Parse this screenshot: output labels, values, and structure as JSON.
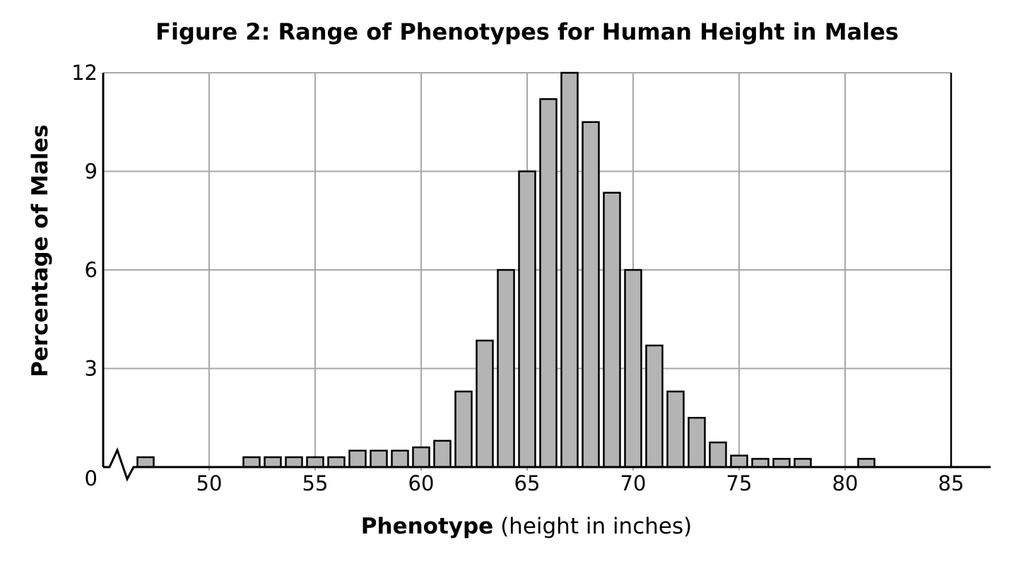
{
  "figure": {
    "title": "Figure 2: Range of Phenotypes for Human Height in Males",
    "y_axis_label": "Percentage of Males",
    "x_axis_label_bold": "Phenotype",
    "x_axis_label_regular": " (height in inches)"
  },
  "chart_data": {
    "type": "bar",
    "title": "Figure 2: Range of Phenotypes for Human Height in Males",
    "xlabel": "Phenotype (height in inches)",
    "ylabel": "Percentage of Males",
    "x": [
      47,
      52,
      53,
      54,
      55,
      56,
      57,
      58,
      59,
      60,
      61,
      62,
      63,
      64,
      65,
      66,
      67,
      68,
      69,
      70,
      71,
      72,
      73,
      74,
      75,
      76,
      77,
      78,
      81
    ],
    "values": [
      0.3,
      0.3,
      0.3,
      0.3,
      0.3,
      0.3,
      0.5,
      0.5,
      0.5,
      0.6,
      0.8,
      2.3,
      3.85,
      6,
      9,
      11.2,
      12,
      10.5,
      8.35,
      6,
      3.7,
      2.3,
      1.5,
      0.75,
      0.35,
      0.25,
      0.25,
      0.25,
      0.25
    ],
    "x_ticks": [
      50,
      55,
      60,
      65,
      70,
      75,
      80,
      85
    ],
    "y_ticks": [
      0,
      3,
      6,
      9,
      12
    ],
    "ylim": [
      0,
      12
    ],
    "xlim_drawn": [
      45,
      87
    ],
    "bar_width_units": 0.8,
    "axis_break_near_origin": true,
    "grid": "on",
    "legend": "none",
    "colors": {
      "bar_fill": "#b4b4b4",
      "bar_stroke": "#000000",
      "gridline": "#a8a8a8",
      "axis": "#000000",
      "background": "#ffffff"
    }
  }
}
